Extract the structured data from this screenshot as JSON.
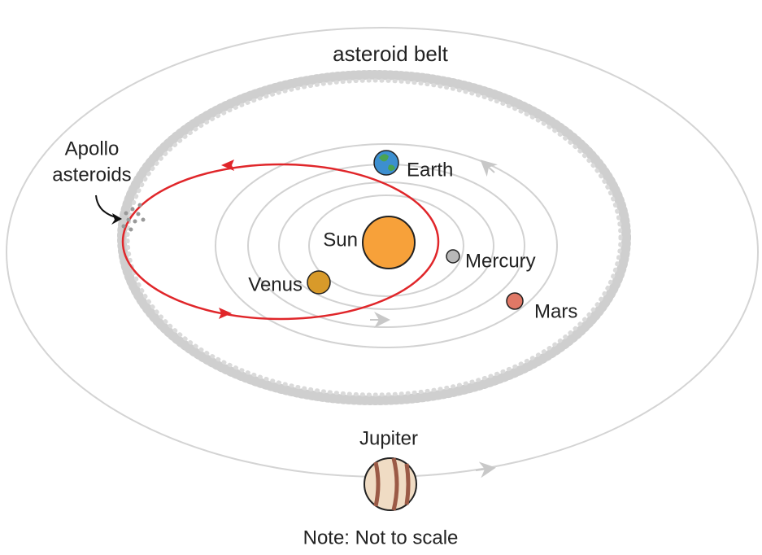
{
  "title": "asteroid belt",
  "apollo": {
    "lines": [
      "Apollo",
      "asteroids"
    ]
  },
  "bodies": [
    {
      "label": "Sun"
    },
    {
      "label": "Mercury"
    },
    {
      "label": "Venus"
    },
    {
      "label": "Earth"
    },
    {
      "label": "Mars"
    },
    {
      "label": "Jupiter"
    }
  ],
  "note": "Note: Not to scale"
}
